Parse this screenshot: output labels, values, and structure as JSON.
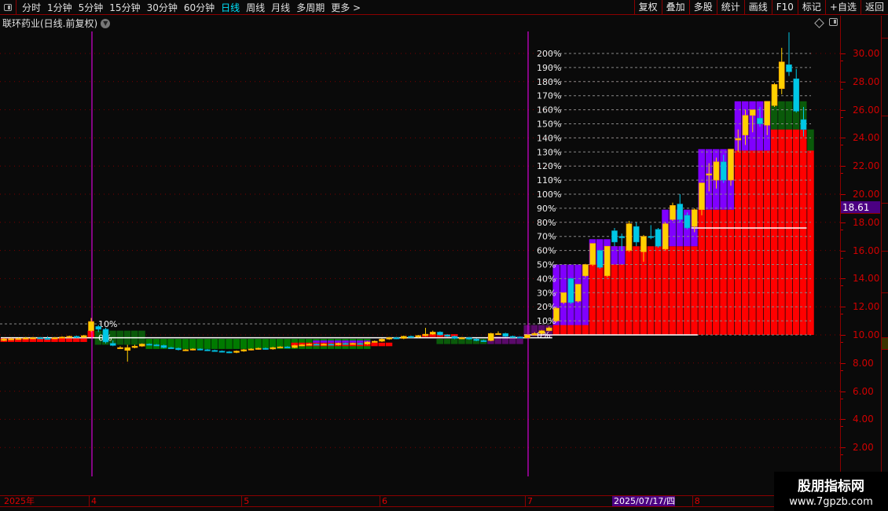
{
  "toolbar": {
    "periods": [
      "分时",
      "1分钟",
      "5分钟",
      "15分钟",
      "30分钟",
      "60分钟",
      "日线",
      "周线",
      "月线",
      "多周期",
      "更多 >"
    ],
    "active_period": "日线",
    "buttons": [
      "复权",
      "叠加",
      "多股",
      "统计",
      "画线",
      "F10",
      "标记",
      "+自选",
      "返回"
    ]
  },
  "title": "联环药业(日线.前复权)",
  "current_price": "18.61",
  "watermark": {
    "name": "股朋指标网",
    "url": "www.7gpzb.com"
  },
  "colors": {
    "up": "#ffd000",
    "down": "#00c8e6",
    "limit_fill": "#ff0000",
    "purple": "#8000ff",
    "green": "#007a00",
    "axis": "#d00000",
    "cursor_line": "#ff00ff"
  },
  "chart_data": {
    "type": "candlestick",
    "price_axis": {
      "ticks": [
        "30.00",
        "28.00",
        "26.00",
        "24.00",
        "22.00",
        "20.00",
        "18.00",
        "16.00",
        "14.00",
        "12.00",
        "10.00",
        "8.00",
        "6.00",
        "4.00",
        "2.00"
      ],
      "range": [
        0,
        33
      ]
    },
    "x_labels": [
      {
        "text": "2025年",
        "index": 0
      },
      {
        "text": "4",
        "index": 12
      },
      {
        "text": "5",
        "index": 33
      },
      {
        "text": "6",
        "index": 52
      },
      {
        "text": "7",
        "index": 72
      },
      {
        "text": "2025/07/17/四",
        "index": 84,
        "selected": true
      },
      {
        "text": "8",
        "index": 95
      }
    ],
    "cursor_indices": [
      12,
      72
    ],
    "pct_scale_right": {
      "base": 10.0,
      "labels": [
        "0%",
        "10%",
        "20%",
        "30%",
        "40%",
        "50%",
        "60%",
        "70%",
        "80%",
        "90%",
        "100%",
        "110%",
        "120%",
        "130%",
        "140%",
        "150%",
        "160%",
        "170%",
        "180%",
        "190%",
        "200%"
      ]
    },
    "pct_scale_left": {
      "base": 9.8,
      "labels": [
        "0%",
        "10%"
      ]
    },
    "candles": [
      [
        9.6,
        9.8,
        9.55,
        9.7
      ],
      [
        9.7,
        9.8,
        9.65,
        9.72
      ],
      [
        9.72,
        9.8,
        9.7,
        9.75
      ],
      [
        9.75,
        9.85,
        9.7,
        9.78
      ],
      [
        9.78,
        9.85,
        9.75,
        9.8
      ],
      [
        9.8,
        9.85,
        9.72,
        9.76
      ],
      [
        9.76,
        9.9,
        9.7,
        9.74
      ],
      [
        9.74,
        9.85,
        9.7,
        9.8
      ],
      [
        9.8,
        9.9,
        9.78,
        9.85
      ],
      [
        9.85,
        9.95,
        9.8,
        9.9
      ],
      [
        9.9,
        9.95,
        9.78,
        9.82
      ],
      [
        9.82,
        10.0,
        9.8,
        9.95
      ],
      [
        10.3,
        11.2,
        10.2,
        10.95
      ],
      [
        10.6,
        10.7,
        10.2,
        10.4
      ],
      [
        10.4,
        10.5,
        9.4,
        9.5
      ],
      [
        9.4,
        9.6,
        9.2,
        9.25
      ],
      [
        9.05,
        9.2,
        9.0,
        9.1
      ],
      [
        8.9,
        9.3,
        8.1,
        9.1
      ],
      [
        9.1,
        9.3,
        9.05,
        9.2
      ],
      [
        9.2,
        9.4,
        9.15,
        9.35
      ],
      [
        9.35,
        9.4,
        9.25,
        9.3
      ],
      [
        9.3,
        9.35,
        9.2,
        9.25
      ],
      [
        9.25,
        9.3,
        9.05,
        9.1
      ],
      [
        9.1,
        9.15,
        9.0,
        9.05
      ],
      [
        9.05,
        9.1,
        8.9,
        8.95
      ],
      [
        8.9,
        9.0,
        8.85,
        8.95
      ],
      [
        8.95,
        9.05,
        8.9,
        9.0
      ],
      [
        9.0,
        9.05,
        8.9,
        8.95
      ],
      [
        8.95,
        9.0,
        8.85,
        8.9
      ],
      [
        8.9,
        8.95,
        8.8,
        8.85
      ],
      [
        8.85,
        8.9,
        8.75,
        8.8
      ],
      [
        8.8,
        8.85,
        8.7,
        8.75
      ],
      [
        8.75,
        8.9,
        8.7,
        8.85
      ],
      [
        8.85,
        9.0,
        8.8,
        8.95
      ],
      [
        8.95,
        9.05,
        8.9,
        9.0
      ],
      [
        9.0,
        9.1,
        8.95,
        9.05
      ],
      [
        9.05,
        9.1,
        8.95,
        9.0
      ],
      [
        9.0,
        9.15,
        8.95,
        9.1
      ],
      [
        9.1,
        9.2,
        9.05,
        9.15
      ],
      [
        9.15,
        9.2,
        9.05,
        9.1
      ],
      [
        9.1,
        9.3,
        9.05,
        9.25
      ],
      [
        9.25,
        9.35,
        9.2,
        9.3
      ],
      [
        9.3,
        9.4,
        9.25,
        9.35
      ],
      [
        9.35,
        9.4,
        9.25,
        9.3
      ],
      [
        9.3,
        9.4,
        9.25,
        9.35
      ],
      [
        9.35,
        9.4,
        9.25,
        9.3
      ],
      [
        9.3,
        9.45,
        9.25,
        9.4
      ],
      [
        9.4,
        9.45,
        9.3,
        9.35
      ],
      [
        9.35,
        9.45,
        9.3,
        9.4
      ],
      [
        9.4,
        9.45,
        9.3,
        9.35
      ],
      [
        9.35,
        9.55,
        9.3,
        9.5
      ],
      [
        9.5,
        9.6,
        9.45,
        9.55
      ],
      [
        9.55,
        9.75,
        9.5,
        9.7
      ],
      [
        9.7,
        9.85,
        9.65,
        9.8
      ],
      [
        9.8,
        9.85,
        9.7,
        9.75
      ],
      [
        9.75,
        9.95,
        9.7,
        9.9
      ],
      [
        9.9,
        9.95,
        9.8,
        9.85
      ],
      [
        9.85,
        10.0,
        9.8,
        9.95
      ],
      [
        9.95,
        10.5,
        9.9,
        10.05
      ],
      [
        10.05,
        10.3,
        10.0,
        10.2
      ],
      [
        10.2,
        10.25,
        9.95,
        10.0
      ],
      [
        10.0,
        10.05,
        9.85,
        9.9
      ],
      [
        9.9,
        9.95,
        9.7,
        9.75
      ],
      [
        9.75,
        9.85,
        9.7,
        9.8
      ],
      [
        9.8,
        9.85,
        9.65,
        9.7
      ],
      [
        9.7,
        9.75,
        9.55,
        9.6
      ],
      [
        9.6,
        9.65,
        9.5,
        9.55
      ],
      [
        9.6,
        10.15,
        9.55,
        10.1
      ],
      [
        10.1,
        10.25,
        10.0,
        10.1
      ],
      [
        10.1,
        10.15,
        9.85,
        9.9
      ],
      [
        9.9,
        9.95,
        9.8,
        9.85
      ],
      [
        9.85,
        9.9,
        9.75,
        9.8
      ],
      [
        9.8,
        10.05,
        9.78,
        10.0
      ],
      [
        10.0,
        10.2,
        9.95,
        10.1
      ],
      [
        10.1,
        10.35,
        10.05,
        10.3
      ],
      [
        10.3,
        10.6,
        10.25,
        10.5
      ],
      [
        11.0,
        11.95,
        10.9,
        11.9
      ],
      [
        12.3,
        13.0,
        12.2,
        13.0
      ],
      [
        14.0,
        14.05,
        12.2,
        12.3
      ],
      [
        12.4,
        13.6,
        12.3,
        13.6
      ],
      [
        14.2,
        15.05,
        14.1,
        15.0
      ],
      [
        15.0,
        16.5,
        14.9,
        16.5
      ],
      [
        16.0,
        16.05,
        14.7,
        14.8
      ],
      [
        14.2,
        16.3,
        14.1,
        16.3
      ],
      [
        17.4,
        17.6,
        16.3,
        16.6
      ],
      [
        17.0,
        17.2,
        16.0,
        16.9
      ],
      [
        16.0,
        18.1,
        15.9,
        17.9
      ],
      [
        17.7,
        18.0,
        16.3,
        16.6
      ],
      [
        15.9,
        17.1,
        15.2,
        17.0
      ],
      [
        17.0,
        17.8,
        16.8,
        16.95
      ],
      [
        17.5,
        17.6,
        16.2,
        16.3
      ],
      [
        16.1,
        18.0,
        16.0,
        17.9
      ],
      [
        18.2,
        19.4,
        18.1,
        19.2
      ],
      [
        19.3,
        20.0,
        18.0,
        18.2
      ],
      [
        18.5,
        18.7,
        17.5,
        17.6
      ],
      [
        17.7,
        19.0,
        17.3,
        18.9
      ],
      [
        18.9,
        20.8,
        18.5,
        20.8
      ],
      [
        21.35,
        22.2,
        20.2,
        21.45
      ],
      [
        21.0,
        22.6,
        20.4,
        22.3
      ],
      [
        22.3,
        22.8,
        20.8,
        21.0
      ],
      [
        21.0,
        23.2,
        20.6,
        23.2
      ],
      [
        23.85,
        24.6,
        23.0,
        23.95
      ],
      [
        24.2,
        26.0,
        23.5,
        25.6
      ],
      [
        25.6,
        26.0,
        24.4,
        26.0
      ],
      [
        25.4,
        26.2,
        24.8,
        25.0
      ],
      [
        24.9,
        26.6,
        24.2,
        26.6
      ],
      [
        26.3,
        27.9,
        26.2,
        27.8
      ],
      [
        27.5,
        30.4,
        27.1,
        29.4
      ],
      [
        29.2,
        31.5,
        28.4,
        28.7
      ],
      [
        28.2,
        28.9,
        25.8,
        25.9
      ],
      [
        25.3,
        26.2,
        24.1,
        24.6
      ]
    ],
    "bands": [
      {
        "from": 0,
        "to": 11,
        "low": 9.5,
        "high": 9.75,
        "color": "red"
      },
      {
        "from": 12,
        "to": 12,
        "low": 9.75,
        "high": 10.3,
        "color": "red"
      },
      {
        "from": 13,
        "to": 19,
        "low": 9.3,
        "high": 10.3,
        "color": "darkgreen"
      },
      {
        "from": 20,
        "to": 50,
        "low": 9.0,
        "high": 9.72,
        "color": "green"
      },
      {
        "from": 40,
        "to": 53,
        "low": 9.2,
        "high": 9.45,
        "color": "red"
      },
      {
        "from": 43,
        "to": 50,
        "low": 9.45,
        "high": 9.6,
        "color": "purple"
      },
      {
        "from": 58,
        "to": 62,
        "low": 9.85,
        "high": 10.05,
        "color": "red"
      },
      {
        "from": 60,
        "to": 66,
        "low": 9.35,
        "high": 9.72,
        "color": "darkgreen"
      },
      {
        "from": 67,
        "to": 71,
        "low": 9.35,
        "high": 9.9,
        "color": "darkpurple"
      },
      {
        "from": 72,
        "to": 75,
        "low": 9.9,
        "high": 10.7,
        "color": "darkpurple"
      },
      {
        "from": 76,
        "to": 80,
        "low": 10.0,
        "high": 10.7,
        "color": "red"
      },
      {
        "from": 76,
        "to": 80,
        "low": 10.7,
        "high": 15.0,
        "color": "purple"
      },
      {
        "from": 81,
        "to": 83,
        "low": 10.0,
        "high": 15.0,
        "color": "red"
      },
      {
        "from": 81,
        "to": 83,
        "low": 15.0,
        "high": 16.8,
        "color": "purple"
      },
      {
        "from": 84,
        "to": 95,
        "low": 10.0,
        "high": 16.3,
        "color": "red"
      },
      {
        "from": 84,
        "to": 85,
        "low": 15.0,
        "high": 16.3,
        "color": "purple"
      },
      {
        "from": 91,
        "to": 95,
        "low": 16.3,
        "high": 18.9,
        "color": "purple"
      },
      {
        "from": 96,
        "to": 100,
        "low": 10.0,
        "high": 18.9,
        "color": "red"
      },
      {
        "from": 96,
        "to": 100,
        "low": 18.9,
        "high": 23.2,
        "color": "purple"
      },
      {
        "from": 101,
        "to": 105,
        "low": 10.0,
        "high": 23.1,
        "color": "red"
      },
      {
        "from": 101,
        "to": 105,
        "low": 23.1,
        "high": 26.6,
        "color": "purple"
      },
      {
        "from": 106,
        "to": 110,
        "low": 10.0,
        "high": 24.6,
        "color": "red"
      },
      {
        "from": 106,
        "to": 110,
        "low": 24.6,
        "high": 26.6,
        "color": "darkgreen"
      },
      {
        "from": 111,
        "to": 111,
        "low": 10.0,
        "high": 23.1,
        "color": "red"
      },
      {
        "from": 111,
        "to": 111,
        "low": 23.1,
        "high": 24.6,
        "color": "darkgreen"
      }
    ],
    "ref_lines": [
      {
        "from": 72,
        "to": 95,
        "price": 10.0
      },
      {
        "from": 95,
        "to": 110,
        "price": 17.6
      },
      {
        "from": 0,
        "to": 75,
        "price": 9.8
      }
    ]
  }
}
